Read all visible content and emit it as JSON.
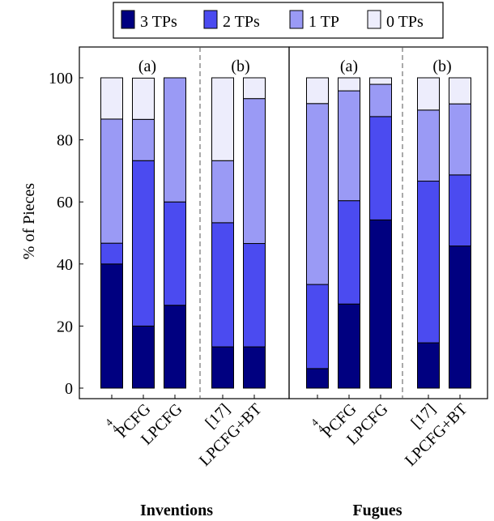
{
  "chart_data": {
    "type": "bar",
    "stacked": true,
    "ylabel": "% of Pieces",
    "ylim": [
      0,
      110
    ],
    "yticks": [
      0,
      20,
      40,
      60,
      80,
      100
    ],
    "legend": {
      "placement": "top-center",
      "entries": [
        "3 TPs",
        "2 TPs",
        "1 TP",
        "0 TPs"
      ]
    },
    "colors": [
      "#000080",
      "#4b4bf0",
      "#9a9af5",
      "#ededfc"
    ],
    "groups": [
      {
        "label": "Inventions",
        "panels": [
          {
            "label": "(a)",
            "categories": [
              "4⁄4 PCFG",
              "LPCFG"
            ]
          },
          {
            "label": "(b)",
            "categories": [
              "[17]",
              "LPCFG+BT"
            ]
          }
        ]
      },
      {
        "label": "Fugues",
        "panels": [
          {
            "label": "(a)",
            "categories": [
              "4⁄4 PCFG",
              "LPCFG"
            ]
          },
          {
            "label": "(b)",
            "categories": [
              "[17]",
              "LPCFG+BT"
            ]
          }
        ]
      }
    ],
    "bars": [
      {
        "group": "Inventions",
        "panel": "(a)",
        "label": "",
        "values": [
          40,
          6.7,
          40,
          13.3
        ]
      },
      {
        "group": "Inventions",
        "panel": "(a)",
        "label": "4⁄4 PCFG",
        "values": [
          20,
          53.3,
          13.3,
          13.3
        ]
      },
      {
        "group": "Inventions",
        "panel": "(a)",
        "label": "LPCFG",
        "values": [
          26.7,
          33.3,
          40,
          0
        ]
      },
      {
        "group": "Inventions",
        "panel": "(b)",
        "label": "[17]",
        "values": [
          13.3,
          40,
          20,
          26.7
        ]
      },
      {
        "group": "Inventions",
        "panel": "(b)",
        "label": "LPCFG+BT",
        "values": [
          13.3,
          33.3,
          46.7,
          6.7
        ]
      },
      {
        "group": "Fugues",
        "panel": "(a)",
        "label": "",
        "values": [
          6.3,
          27.1,
          58.3,
          8.3
        ]
      },
      {
        "group": "Fugues",
        "panel": "(a)",
        "label": "4⁄4 PCFG",
        "values": [
          27.1,
          33.3,
          35.4,
          4.2
        ]
      },
      {
        "group": "Fugues",
        "panel": "(a)",
        "label": "LPCFG",
        "values": [
          54.2,
          33.3,
          10.4,
          2.1
        ]
      },
      {
        "group": "Fugues",
        "panel": "(b)",
        "label": "[17]",
        "values": [
          14.6,
          52.1,
          22.9,
          10.4
        ]
      },
      {
        "group": "Fugues",
        "panel": "(b)",
        "label": "LPCFG+BT",
        "values": [
          45.8,
          22.9,
          22.9,
          8.4
        ]
      }
    ]
  }
}
